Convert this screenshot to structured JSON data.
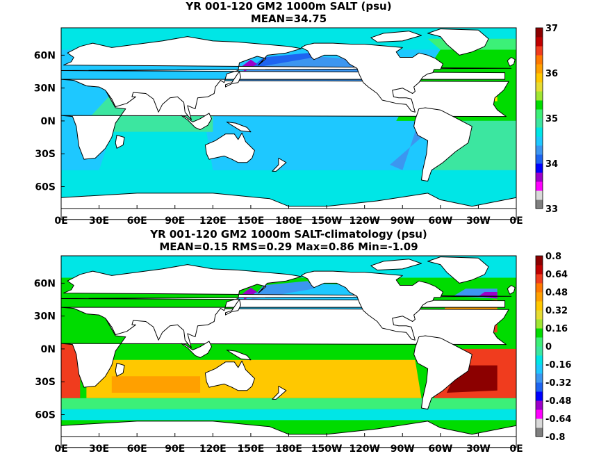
{
  "chart_data": [
    {
      "type": "heatmap",
      "title": "YR 001-120 GM2 1000m SALT (psu)",
      "subtitle": "MEAN=34.75",
      "x_tick_labels": [
        "0E",
        "30E",
        "60E",
        "90E",
        "120E",
        "150E",
        "180E",
        "150W",
        "120W",
        "90W",
        "60W",
        "30W",
        "0E"
      ],
      "y_tick_labels": [
        "60N",
        "30N",
        "0N",
        "30S",
        "60S"
      ],
      "y_tick_values": [
        60,
        30,
        0,
        -30,
        -60
      ],
      "xlim": [
        0,
        360
      ],
      "ylim": [
        -80,
        85
      ],
      "colorbar": {
        "tick_labels": [
          "37",
          "36",
          "35",
          "34",
          "33"
        ],
        "colors": [
          "#7f7f7f",
          "#d9d9d9",
          "#ff00ff",
          "#9c00c9",
          "#0000ff",
          "#1e64f0",
          "#3c96f0",
          "#1ec8ff",
          "#00e6e6",
          "#3ce6a0",
          "#3cf078",
          "#00dc00",
          "#a0e632",
          "#e6dc32",
          "#ffc800",
          "#ffa000",
          "#ff7800",
          "#f03c1e",
          "#c00000",
          "#8c0000"
        ],
        "range": [
          33,
          37
        ]
      },
      "regions": {
        "north_pacific": "34.3-34.5",
        "eq_pacific": "34.5-34.6",
        "south_pacific": "34.4-34.6",
        "southern_ocean": "34.6-34.7",
        "indian_ocean": "34.7-34.8",
        "north_atlantic": "35.0-35.2",
        "south_atlantic": "34.6-34.9",
        "okhotsk_bering": "33.5-34.0"
      }
    },
    {
      "type": "heatmap",
      "title": "YR 001-120 GM2 1000m SALT-climatology (psu)",
      "subtitle": "MEAN=0.15   RMS=0.29   Max=0.86   Min=-1.09",
      "x_tick_labels": [
        "0E",
        "30E",
        "60E",
        "90E",
        "120E",
        "150E",
        "180E",
        "150W",
        "120W",
        "90W",
        "60W",
        "30W",
        "0E"
      ],
      "y_tick_labels": [
        "60N",
        "30N",
        "0N",
        "30S",
        "60S"
      ],
      "y_tick_values": [
        60,
        30,
        0,
        -30,
        -60
      ],
      "xlim": [
        0,
        360
      ],
      "ylim": [
        -80,
        85
      ],
      "colorbar": {
        "tick_labels": [
          "0.8",
          "0.64",
          "0.48",
          "0.32",
          "0.16",
          "0",
          "-0.16",
          "-0.32",
          "-0.48",
          "-0.64",
          "-0.8"
        ],
        "colors": [
          "#7f7f7f",
          "#d9d9d9",
          "#ff00ff",
          "#9c00c9",
          "#0000ff",
          "#1e64f0",
          "#3c96f0",
          "#1ec8ff",
          "#00e6e6",
          "#3ce6a0",
          "#3cf078",
          "#00dc00",
          "#a0e632",
          "#e6dc32",
          "#ffc800",
          "#ffa000",
          "#ff7800",
          "#f03c1e",
          "#c00000",
          "#8c0000"
        ],
        "range": [
          -0.8,
          0.8
        ]
      },
      "regions": {
        "north_pacific": "-0.3 to -0.1",
        "eq_pacific": "0.0 to 0.2",
        "south_indian_pacific": "0.3 to 0.5",
        "south_atlantic": "0.6 to 0.86",
        "southern_ocean": "0.1 to 0.2",
        "arctic": "-0.1 to 0.0"
      }
    }
  ]
}
